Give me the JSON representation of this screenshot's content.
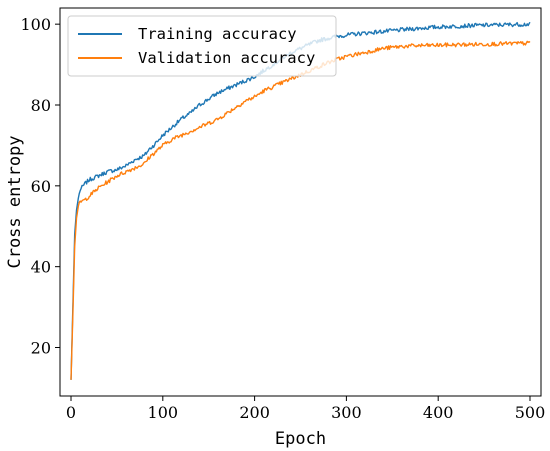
{
  "chart_data": {
    "type": "line",
    "title": "",
    "xlabel": "Epoch",
    "ylabel": "Cross entropy",
    "xlim": [
      -12,
      512
    ],
    "ylim": [
      8,
      104
    ],
    "xticks": [
      0,
      100,
      200,
      300,
      400,
      500
    ],
    "yticks": [
      20,
      40,
      60,
      80,
      100
    ],
    "grid": false,
    "legend_position": "top-left",
    "series": [
      {
        "name": "Training accuracy",
        "color": "#1f77b4",
        "points": [
          [
            0,
            12
          ],
          [
            2,
            30
          ],
          [
            4,
            48
          ],
          [
            6,
            54
          ],
          [
            8,
            57
          ],
          [
            10,
            59
          ],
          [
            15,
            60.5
          ],
          [
            20,
            61.5
          ],
          [
            30,
            62.5
          ],
          [
            40,
            63.5
          ],
          [
            50,
            64
          ],
          [
            60,
            65
          ],
          [
            70,
            66.5
          ],
          [
            80,
            67.5
          ],
          [
            85,
            69
          ],
          [
            90,
            70
          ],
          [
            100,
            72.5
          ],
          [
            110,
            74.5
          ],
          [
            120,
            76.5
          ],
          [
            130,
            78
          ],
          [
            140,
            80
          ],
          [
            150,
            81.5
          ],
          [
            160,
            83
          ],
          [
            170,
            84
          ],
          [
            180,
            85
          ],
          [
            190,
            86
          ],
          [
            200,
            87
          ],
          [
            210,
            88.5
          ],
          [
            220,
            90
          ],
          [
            230,
            91.5
          ],
          [
            240,
            93
          ],
          [
            250,
            94
          ],
          [
            260,
            95
          ],
          [
            270,
            96
          ],
          [
            280,
            96.5
          ],
          [
            290,
            97
          ],
          [
            300,
            97.3
          ],
          [
            320,
            97.8
          ],
          [
            340,
            98.2
          ],
          [
            360,
            98.6
          ],
          [
            380,
            99
          ],
          [
            400,
            99.3
          ],
          [
            420,
            99.5
          ],
          [
            440,
            99.7
          ],
          [
            460,
            99.8
          ],
          [
            480,
            99.9
          ],
          [
            500,
            100
          ]
        ],
        "noise": 0.5
      },
      {
        "name": "Validation accuracy",
        "color": "#ff7f0e",
        "points": [
          [
            0,
            12
          ],
          [
            2,
            28
          ],
          [
            4,
            45
          ],
          [
            6,
            52
          ],
          [
            8,
            55
          ],
          [
            10,
            56
          ],
          [
            15,
            56.5
          ],
          [
            20,
            57.5
          ],
          [
            30,
            59.5
          ],
          [
            40,
            61
          ],
          [
            50,
            62.5
          ],
          [
            60,
            63.5
          ],
          [
            70,
            64.5
          ],
          [
            80,
            65.5
          ],
          [
            85,
            67
          ],
          [
            90,
            68
          ],
          [
            100,
            70
          ],
          [
            110,
            71.5
          ],
          [
            120,
            72.5
          ],
          [
            130,
            73.5
          ],
          [
            140,
            74.5
          ],
          [
            150,
            75.5
          ],
          [
            160,
            76.5
          ],
          [
            170,
            78
          ],
          [
            180,
            79.5
          ],
          [
            190,
            81
          ],
          [
            200,
            82
          ],
          [
            210,
            83.5
          ],
          [
            220,
            84.5
          ],
          [
            230,
            85.5
          ],
          [
            240,
            86.5
          ],
          [
            250,
            87.5
          ],
          [
            260,
            88.5
          ],
          [
            270,
            89.5
          ],
          [
            280,
            90.5
          ],
          [
            290,
            91.3
          ],
          [
            300,
            92
          ],
          [
            320,
            93
          ],
          [
            340,
            94
          ],
          [
            360,
            94.5
          ],
          [
            380,
            94.7
          ],
          [
            400,
            94.8
          ],
          [
            420,
            94.9
          ],
          [
            440,
            95
          ],
          [
            460,
            95.1
          ],
          [
            480,
            95.2
          ],
          [
            500,
            95.3
          ]
        ],
        "noise": 0.5
      }
    ]
  }
}
